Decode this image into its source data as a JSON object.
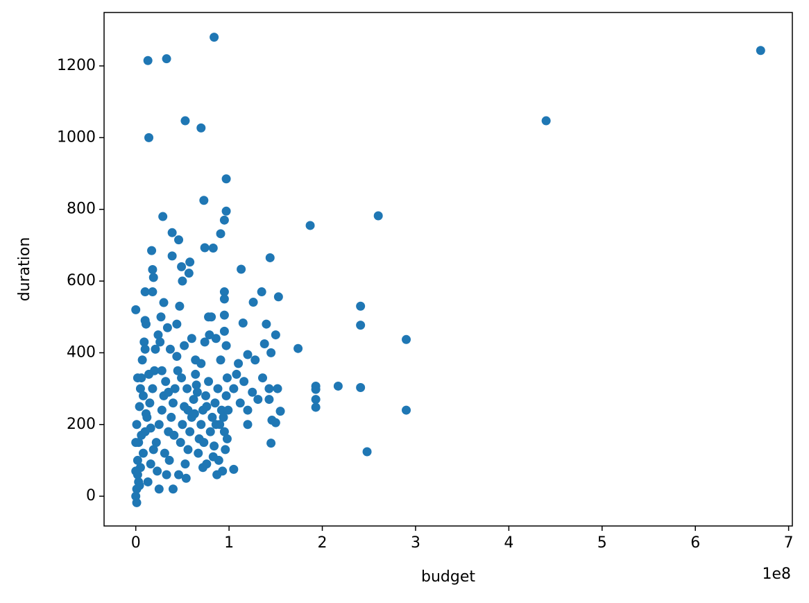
{
  "chart_data": {
    "type": "scatter",
    "x_label": "budget",
    "y_label": "duration",
    "x_offset_label": "1e8",
    "color": "#1f77b4",
    "xlim": [
      -34000000,
      704000000
    ],
    "ylim": [
      -83,
      1349
    ],
    "xticks": [
      0,
      {
        "value": 100000000,
        "label": "1"
      },
      {
        "value": 200000000,
        "label": "2"
      },
      {
        "value": 300000000,
        "label": "3"
      },
      {
        "value": 400000000,
        "label": "4"
      },
      {
        "value": 500000000,
        "label": "5"
      },
      {
        "value": 600000000,
        "label": "6"
      },
      {
        "value": 700000000,
        "label": "7"
      }
    ],
    "yticks": [
      0,
      200,
      400,
      600,
      800,
      1000,
      1200
    ],
    "x": [
      670000000,
      440000000,
      84000000,
      13000000,
      33000000,
      53000000,
      70000000,
      14000000,
      97000000,
      73000000,
      260000000,
      97000000,
      29000000,
      187000000,
      95000000,
      39000000,
      46000000,
      91000000,
      74000000,
      83000000,
      17000000,
      144000000,
      39000000,
      58000000,
      18000000,
      113000000,
      49000000,
      57000000,
      241000000,
      241000000,
      290000000,
      174000000,
      290000000,
      248000000,
      241000000,
      217000000,
      193000000,
      193000000,
      193000000,
      193000000,
      153000000,
      135000000,
      126000000,
      115000000,
      140000000,
      150000000,
      138000000,
      145000000,
      120000000,
      128000000,
      95000000,
      95000000,
      95000000,
      152000000,
      143000000,
      155000000,
      145000000,
      146000000,
      150000000,
      120000000,
      105000000,
      0,
      1000000,
      0,
      2000000,
      2000000,
      3000000,
      1000000,
      4000000,
      5000000,
      6000000,
      8000000,
      10000000,
      12000000,
      15000000,
      18000000,
      20000000,
      22000000,
      25000000,
      28000000,
      30000000,
      32000000,
      35000000,
      38000000,
      40000000,
      42000000,
      45000000,
      48000000,
      50000000,
      52000000,
      55000000,
      58000000,
      60000000,
      62000000,
      65000000,
      68000000,
      70000000,
      72000000,
      75000000,
      78000000,
      80000000,
      82000000,
      85000000,
      88000000,
      90000000,
      92000000,
      95000000,
      97000000,
      98000000,
      3000000,
      5000000,
      7000000,
      9000000,
      11000000,
      13000000,
      16000000,
      19000000,
      21000000,
      24000000,
      27000000,
      30000000,
      33000000,
      36000000,
      40000000,
      44000000,
      47000000,
      50000000,
      53000000,
      56000000,
      60000000,
      64000000,
      67000000,
      72000000,
      76000000,
      79000000,
      84000000,
      87000000,
      89000000,
      93000000,
      96000000,
      98000000,
      97000000,
      95000000,
      91000000,
      86000000,
      81000000,
      18000000,
      19000000,
      10000000,
      10000000,
      10000000,
      14000000,
      26000000,
      34000000,
      37000000,
      44000000,
      52000000,
      70000000,
      74000000,
      78000000,
      64000000,
      46000000,
      54000000,
      25000000,
      2000000,
      0,
      1000000,
      0,
      4000000,
      6000000,
      8000000,
      23000000,
      31000000,
      41000000,
      56000000,
      66000000,
      76000000,
      86000000,
      11000000,
      16000000,
      28000000,
      35000000,
      49000000,
      63000000,
      73000000,
      83000000,
      94000000,
      99000000,
      108000000,
      112000000,
      120000000,
      105000000,
      110000000,
      116000000,
      131000000,
      143000000,
      136000000,
      125000000
    ],
    "values": [
      1243,
      1047,
      1280,
      1215,
      1220,
      1047,
      1027,
      1000,
      885,
      825,
      782,
      795,
      780,
      755,
      770,
      735,
      715,
      732,
      693,
      692,
      685,
      665,
      670,
      653,
      632,
      633,
      640,
      622,
      530,
      477,
      437,
      412,
      240,
      124,
      303,
      307,
      307,
      298,
      270,
      248,
      556,
      570,
      541,
      483,
      480,
      450,
      425,
      400,
      395,
      380,
      570,
      550,
      505,
      300,
      300,
      237,
      148,
      212,
      205,
      200,
      75,
      520,
      -18,
      0,
      100,
      60,
      150,
      200,
      250,
      300,
      330,
      120,
      180,
      220,
      260,
      300,
      350,
      150,
      200,
      240,
      280,
      320,
      180,
      220,
      260,
      300,
      350,
      150,
      200,
      250,
      300,
      180,
      220,
      270,
      310,
      160,
      200,
      240,
      280,
      320,
      180,
      220,
      260,
      300,
      200,
      240,
      180,
      280,
      330,
      40,
      80,
      380,
      430,
      480,
      40,
      90,
      130,
      410,
      450,
      500,
      540,
      60,
      100,
      20,
      480,
      530,
      600,
      90,
      130,
      440,
      380,
      120,
      80,
      90,
      450,
      140,
      60,
      100,
      70,
      130,
      160,
      420,
      460,
      380,
      440,
      500,
      570,
      610,
      570,
      490,
      410,
      340,
      430,
      470,
      410,
      390,
      420,
      370,
      430,
      500,
      340,
      60,
      50,
      20,
      330,
      70,
      20,
      150,
      30,
      170,
      280,
      70,
      120,
      170,
      240,
      290,
      250,
      200,
      230,
      190,
      350,
      290,
      330,
      230,
      150,
      110,
      220,
      240,
      340,
      260,
      240,
      300,
      370,
      320,
      270,
      270,
      330,
      290
    ]
  }
}
